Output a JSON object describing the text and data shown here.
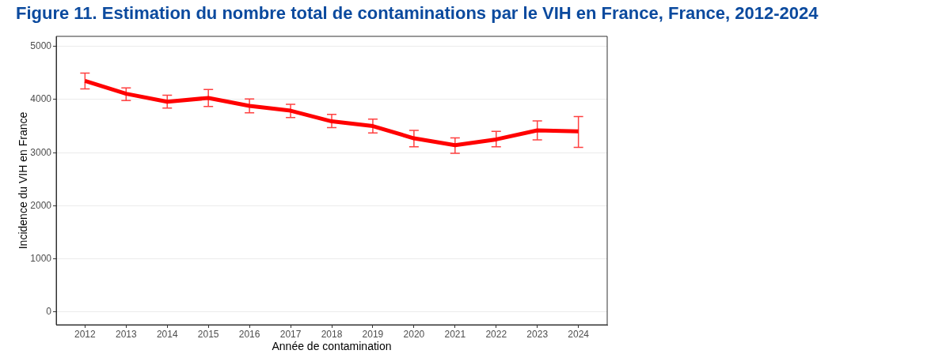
{
  "chart_data": {
    "type": "line",
    "title": "Figure 11. Estimation du nombre total de contaminations par le VIH en France, France, 2012-2024",
    "xlabel": "Année de contamination",
    "ylabel": "Incidence du VIH en France",
    "categories": [
      "2012",
      "2013",
      "2014",
      "2015",
      "2016",
      "2017",
      "2018",
      "2019",
      "2020",
      "2021",
      "2022",
      "2023",
      "2024"
    ],
    "series": [
      {
        "color": "#ff0000",
        "values": [
          4350,
          4110,
          3960,
          4030,
          3880,
          3790,
          3590,
          3500,
          3270,
          3140,
          3250,
          3420,
          3400
        ],
        "errors": [
          [
            4200,
            4500
          ],
          [
            3980,
            4220
          ],
          [
            3840,
            4080
          ],
          [
            3870,
            4190
          ],
          [
            3750,
            4010
          ],
          [
            3660,
            3910
          ],
          [
            3470,
            3720
          ],
          [
            3370,
            3630
          ],
          [
            3110,
            3420
          ],
          [
            2990,
            3280
          ],
          [
            3110,
            3400
          ],
          [
            3240,
            3600
          ],
          [
            3100,
            3680
          ]
        ]
      }
    ],
    "ylim": [
      -240,
      5190
    ],
    "yticks": [
      0,
      1000,
      2000,
      3000,
      4000,
      5000
    ],
    "grid": "y",
    "line_style": "solid"
  }
}
